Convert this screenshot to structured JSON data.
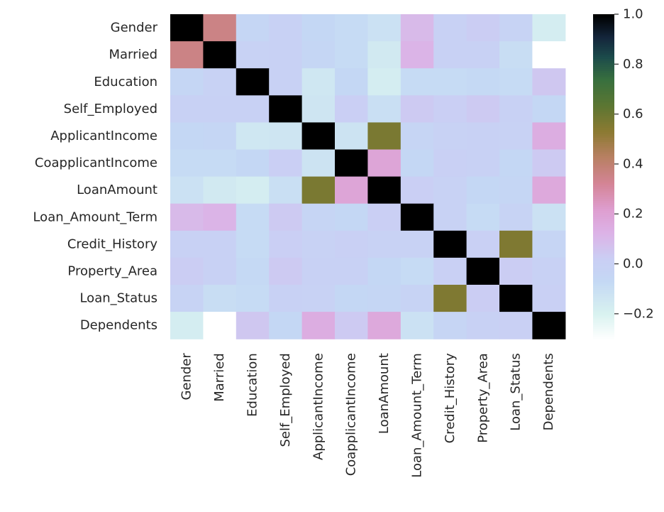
{
  "chart_data": {
    "type": "heatmap",
    "title": "",
    "xlabel": "",
    "ylabel": "",
    "colormap": "cubehelix_r",
    "rows": [
      "Gender",
      "Married",
      "Education",
      "Self_Employed",
      "ApplicantIncome",
      "CoapplicantIncome",
      "LoanAmount",
      "Loan_Amount_Term",
      "Credit_History",
      "Property_Area",
      "Loan_Status",
      "Dependents"
    ],
    "columns": [
      "Gender",
      "Married",
      "Education",
      "Self_Employed",
      "ApplicantIncome",
      "CoapplicantIncome",
      "LoanAmount",
      "Loan_Amount_Term",
      "Credit_History",
      "Property_Area",
      "Loan_Status",
      "Dependents"
    ],
    "values": [
      [
        1.0,
        0.36,
        -0.05,
        0.0,
        -0.06,
        -0.08,
        -0.11,
        0.1,
        0.0,
        0.03,
        -0.02,
        -0.17
      ],
      [
        0.36,
        1.0,
        -0.01,
        0.0,
        -0.05,
        -0.08,
        -0.15,
        0.12,
        0.0,
        0.0,
        -0.09,
        null
      ],
      [
        -0.05,
        -0.01,
        1.0,
        0.0,
        -0.14,
        -0.06,
        -0.17,
        -0.08,
        -0.08,
        -0.07,
        -0.08,
        0.05
      ],
      [
        0.0,
        0.0,
        0.0,
        1.0,
        -0.13,
        0.02,
        -0.1,
        0.04,
        0.02,
        0.04,
        0.0,
        -0.06
      ],
      [
        -0.06,
        -0.05,
        -0.14,
        -0.13,
        1.0,
        -0.12,
        0.57,
        -0.04,
        -0.01,
        0.0,
        -0.01,
        0.15
      ],
      [
        -0.08,
        -0.08,
        -0.06,
        0.02,
        -0.12,
        1.0,
        0.19,
        -0.06,
        0.01,
        0.0,
        -0.06,
        0.04
      ],
      [
        -0.11,
        -0.15,
        -0.17,
        -0.1,
        0.57,
        0.19,
        1.0,
        0.02,
        -0.01,
        -0.06,
        -0.05,
        0.17
      ],
      [
        0.1,
        0.12,
        -0.08,
        0.04,
        -0.04,
        -0.06,
        0.02,
        1.0,
        -0.01,
        -0.08,
        -0.02,
        -0.11
      ],
      [
        0.0,
        0.0,
        -0.08,
        0.02,
        -0.01,
        0.01,
        -0.01,
        -0.01,
        1.0,
        0.01,
        0.56,
        -0.04
      ],
      [
        0.03,
        0.0,
        -0.07,
        0.04,
        0.0,
        0.0,
        -0.06,
        -0.08,
        0.01,
        1.0,
        0.03,
        0.0
      ],
      [
        -0.02,
        -0.09,
        -0.08,
        0.0,
        -0.01,
        -0.06,
        -0.05,
        -0.02,
        0.56,
        0.03,
        1.0,
        0.01
      ],
      [
        -0.17,
        null,
        0.05,
        -0.06,
        0.15,
        0.04,
        0.17,
        -0.11,
        -0.04,
        0.0,
        0.01,
        1.0
      ]
    ],
    "colorbar": {
      "min": -0.3,
      "max": 1.0,
      "ticks": [
        -0.2,
        0.0,
        0.2,
        0.4,
        0.6,
        0.8,
        1.0
      ],
      "tick_labels": [
        "−0.2",
        "0.0",
        "0.2",
        "0.4",
        "0.6",
        "0.8",
        "1.0"
      ]
    }
  }
}
